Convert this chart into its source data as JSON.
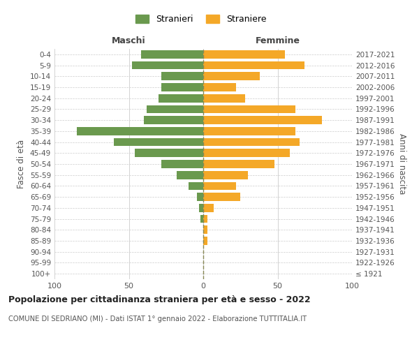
{
  "age_groups": [
    "100+",
    "95-99",
    "90-94",
    "85-89",
    "80-84",
    "75-79",
    "70-74",
    "65-69",
    "60-64",
    "55-59",
    "50-54",
    "45-49",
    "40-44",
    "35-39",
    "30-34",
    "25-29",
    "20-24",
    "15-19",
    "10-14",
    "5-9",
    "0-4"
  ],
  "birth_years": [
    "≤ 1921",
    "1922-1926",
    "1927-1931",
    "1932-1936",
    "1937-1941",
    "1942-1946",
    "1947-1951",
    "1952-1956",
    "1957-1961",
    "1962-1966",
    "1967-1971",
    "1972-1976",
    "1977-1981",
    "1982-1986",
    "1987-1991",
    "1992-1996",
    "1997-2001",
    "2002-2006",
    "2007-2011",
    "2012-2016",
    "2017-2021"
  ],
  "males": [
    0,
    0,
    0,
    0,
    0,
    2,
    3,
    4,
    10,
    18,
    28,
    46,
    60,
    85,
    40,
    38,
    30,
    28,
    28,
    48,
    42
  ],
  "females": [
    0,
    0,
    0,
    3,
    3,
    3,
    7,
    25,
    22,
    30,
    48,
    58,
    65,
    62,
    80,
    62,
    28,
    22,
    38,
    68,
    55
  ],
  "male_color": "#6a994e",
  "female_color": "#f4a828",
  "grid_color": "#cccccc",
  "dashed_line_color": "#888855",
  "title": "Popolazione per cittadinanza straniera per età e sesso - 2022",
  "subtitle": "COMUNE DI SEDRIANO (MI) - Dati ISTAT 1° gennaio 2022 - Elaborazione TUTTITALIA.IT",
  "xlabel_left": "Maschi",
  "xlabel_right": "Femmine",
  "ylabel_left": "Fasce di età",
  "ylabel_right": "Anni di nascita",
  "legend_male": "Stranieri",
  "legend_female": "Straniere",
  "xlim": 100,
  "background_color": "#ffffff"
}
